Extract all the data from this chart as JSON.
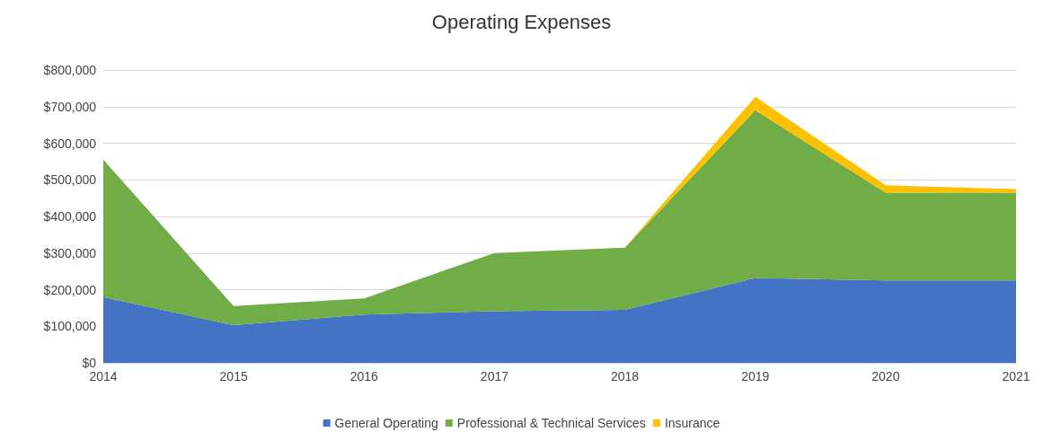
{
  "chart_data": {
    "type": "area",
    "title": "Operating Expenses",
    "stacked": true,
    "categories": [
      "2014",
      "2015",
      "2016",
      "2017",
      "2018",
      "2019",
      "2020",
      "2021"
    ],
    "series": [
      {
        "name": "General Operating",
        "color": "#4472c4",
        "values": [
          180000,
          103000,
          132000,
          141000,
          145000,
          232000,
          225000,
          225000
        ]
      },
      {
        "name": "Professional & Technical Services",
        "color": "#70ad47",
        "values": [
          375000,
          52000,
          44000,
          159000,
          170000,
          458000,
          240000,
          240000
        ]
      },
      {
        "name": "Insurance",
        "color": "#ffc000",
        "values": [
          0,
          0,
          0,
          0,
          0,
          37000,
          20000,
          10000
        ]
      }
    ],
    "ylim": [
      0,
      800000
    ],
    "yticks": [
      {
        "value": 0,
        "label": "$0"
      },
      {
        "value": 100000,
        "label": "$100,000"
      },
      {
        "value": 200000,
        "label": "$200,000"
      },
      {
        "value": 300000,
        "label": "$300,000"
      },
      {
        "value": 400000,
        "label": "$400,000"
      },
      {
        "value": 500000,
        "label": "$500,000"
      },
      {
        "value": 600000,
        "label": "$600,000"
      },
      {
        "value": 700000,
        "label": "$700,000"
      },
      {
        "value": 800000,
        "label": "$800,000"
      }
    ],
    "grid": "y",
    "legend": "bottom"
  }
}
